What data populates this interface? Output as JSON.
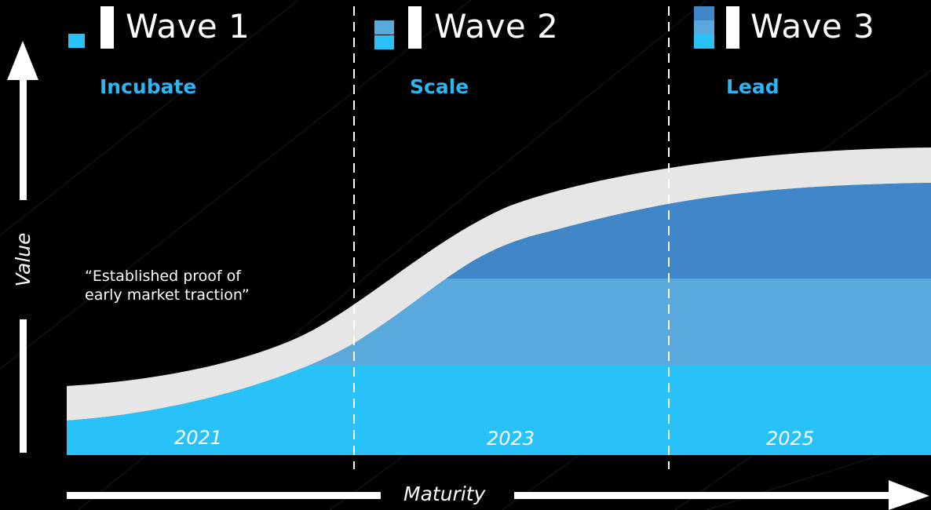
{
  "waves": [
    {
      "title": "Wave 1",
      "phase": "Incubate",
      "year": "2021"
    },
    {
      "title": "Wave 2",
      "phase": "Scale",
      "year": "2023"
    },
    {
      "title": "Wave 3",
      "phase": "Lead",
      "year": "2025"
    }
  ],
  "quote": {
    "line1": "“Established proof of",
    "line2": "early market traction”"
  },
  "axes": {
    "x_label": "Maturity",
    "y_label": "Value"
  },
  "colors": {
    "background": "#000000",
    "tier1": "#29c2f8",
    "tier2": "#5aa9dc",
    "tier3": "#3f87c8",
    "band": "#e6e6e6",
    "accent_text": "#2fb4f2",
    "divider": "#ffffff"
  }
}
